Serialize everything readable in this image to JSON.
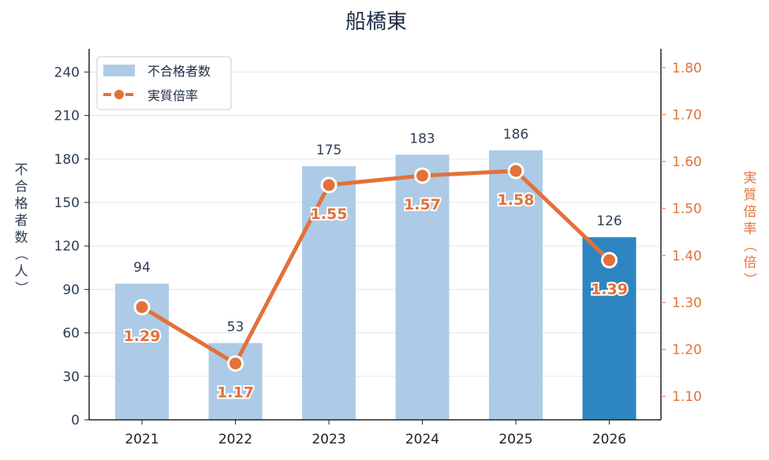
{
  "chart_data": {
    "type": "bar",
    "title": "船橋東",
    "categories": [
      "2021",
      "2022",
      "2023",
      "2024",
      "2025",
      "2026"
    ],
    "series": [
      {
        "name": "不合格者数",
        "type": "bar",
        "axis": "left",
        "values": [
          94,
          53,
          175,
          183,
          186,
          126
        ],
        "labels": [
          "94",
          "53",
          "175",
          "183",
          "186",
          "126"
        ]
      },
      {
        "name": "実質倍率",
        "type": "line",
        "axis": "right",
        "values": [
          1.29,
          1.17,
          1.55,
          1.57,
          1.58,
          1.39
        ],
        "labels": [
          "1.29",
          "1.17",
          "1.55",
          "1.57",
          "1.58",
          "1.39"
        ]
      }
    ],
    "ylabel": "不合格者数（人）",
    "y2label": "実質倍率（倍）",
    "ylim": [
      0,
      256
    ],
    "y2lim": [
      1.05,
      1.84
    ],
    "yticks": [
      "0",
      "30",
      "60",
      "90",
      "120",
      "150",
      "180",
      "210",
      "240"
    ],
    "y2ticks": [
      "1.10",
      "1.20",
      "1.30",
      "1.40",
      "1.50",
      "1.60",
      "1.70",
      "1.80"
    ],
    "highlight_index": 5,
    "grid": true,
    "legend_position": "top-left"
  },
  "colors": {
    "bar": "#adcbe6",
    "bar_highlight": "#2e86c1",
    "line": "#e3713a",
    "left_axis": "#2f3e55",
    "right_axis": "#e3713a",
    "grid": "#e6e6e6"
  }
}
